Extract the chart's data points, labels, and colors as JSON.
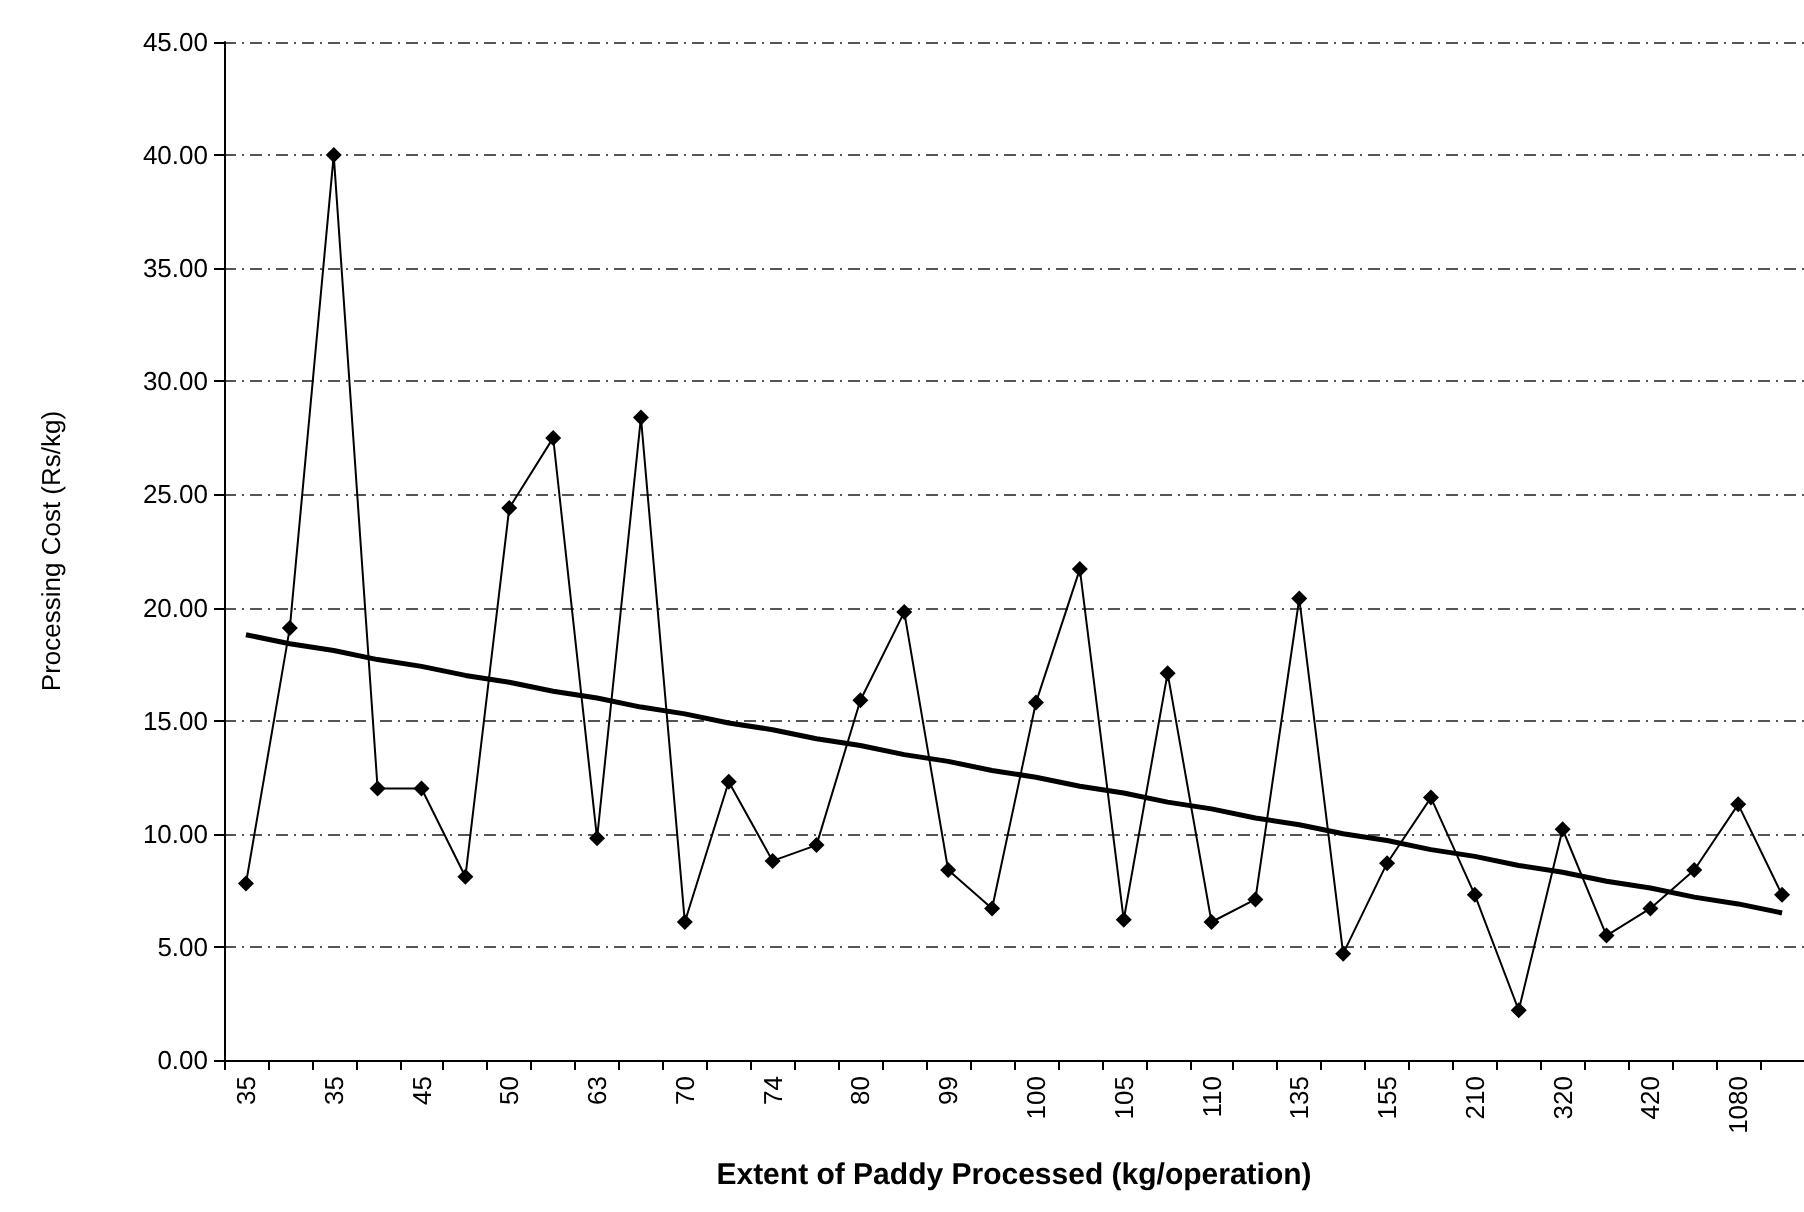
{
  "chart_data": {
    "type": "line",
    "xlabel": "Extent of Paddy Processed (kg/operation)",
    "ylabel": "Processing Cost (Rs/kg)",
    "categories": [
      "35",
      null,
      "35",
      null,
      "45",
      null,
      "50",
      null,
      "63",
      null,
      "70",
      null,
      "74",
      null,
      "80",
      null,
      "99",
      null,
      "100",
      null,
      "105",
      null,
      "110",
      null,
      "135",
      null,
      "155",
      null,
      "210",
      null,
      "320",
      null,
      "420",
      null,
      "1080",
      null
    ],
    "series": [
      {
        "color": "#000000",
        "marker": "diamond",
        "values": [
          7.8,
          19.1,
          40.0,
          12.0,
          12.0,
          8.1,
          24.4,
          27.5,
          9.8,
          28.4,
          6.1,
          12.3,
          8.8,
          9.5,
          15.9,
          19.8,
          8.4,
          6.7,
          15.8,
          21.7,
          6.2,
          17.1,
          6.1,
          7.1,
          20.4,
          4.7,
          8.7,
          11.6,
          7.3,
          2.2,
          10.2,
          5.5,
          6.7,
          8.4,
          11.3,
          7.3
        ]
      },
      {
        "color": "#000000",
        "marker": "none",
        "values": [
          18.8,
          18.4,
          18.1,
          17.7,
          17.4,
          17.0,
          16.7,
          16.3,
          16.0,
          15.6,
          15.3,
          14.9,
          14.6,
          14.2,
          13.9,
          13.5,
          13.2,
          12.8,
          12.5,
          12.1,
          11.8,
          11.4,
          11.1,
          10.7,
          10.4,
          10.0,
          9.7,
          9.3,
          9.0,
          8.6,
          8.3,
          7.9,
          7.6,
          7.2,
          6.9,
          6.5
        ]
      }
    ],
    "ylim": [
      0,
      45
    ],
    "yticks": [
      {
        "value": 0,
        "label": "0.00"
      },
      {
        "value": 5,
        "label": "5.00"
      },
      {
        "value": 10,
        "label": "10.00"
      },
      {
        "value": 15,
        "label": "15.00"
      },
      {
        "value": 20,
        "label": "20.00"
      },
      {
        "value": 25,
        "label": "25.00"
      },
      {
        "value": 30,
        "label": "30.00"
      },
      {
        "value": 35,
        "label": "35.00"
      },
      {
        "value": 40,
        "label": "40.00"
      },
      {
        "value": 45,
        "label": "45.00"
      }
    ],
    "grid": "y"
  }
}
